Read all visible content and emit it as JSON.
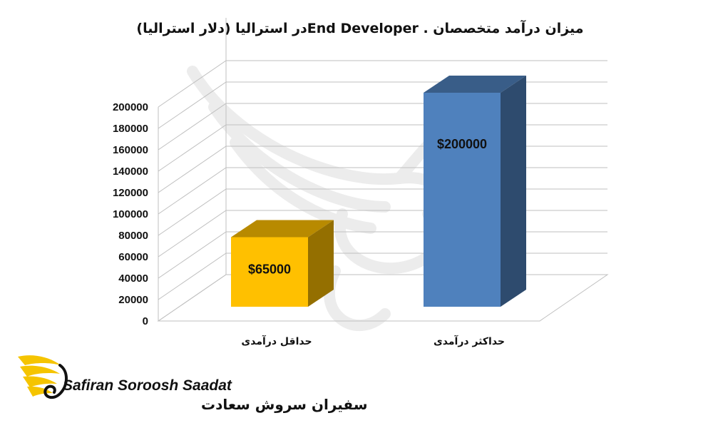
{
  "chart_data": {
    "type": "bar",
    "title": "میزان درآمد متخصصان . End Developerدر استرالیا (دلار استرالیا)",
    "categories": [
      "حداقل درآمدی",
      "حداکثر درآمدی"
    ],
    "values": [
      65000,
      200000
    ],
    "data_labels": [
      "$65000",
      "$200000"
    ],
    "ylim": [
      0,
      200000
    ],
    "yticks": [
      "0",
      "20000",
      "40000",
      "60000",
      "80000",
      "100000",
      "120000",
      "140000",
      "160000",
      "180000",
      "200000"
    ],
    "xlabel": "",
    "ylabel": "",
    "grid": true,
    "legend": "none",
    "style": "3d-column",
    "colors": [
      "#FFC000",
      "#4F81BD"
    ]
  },
  "logo": {
    "latin": "Safiran Soroosh Saadat",
    "persian": "سفیران سروش سعادت",
    "color": "#F5C400"
  }
}
